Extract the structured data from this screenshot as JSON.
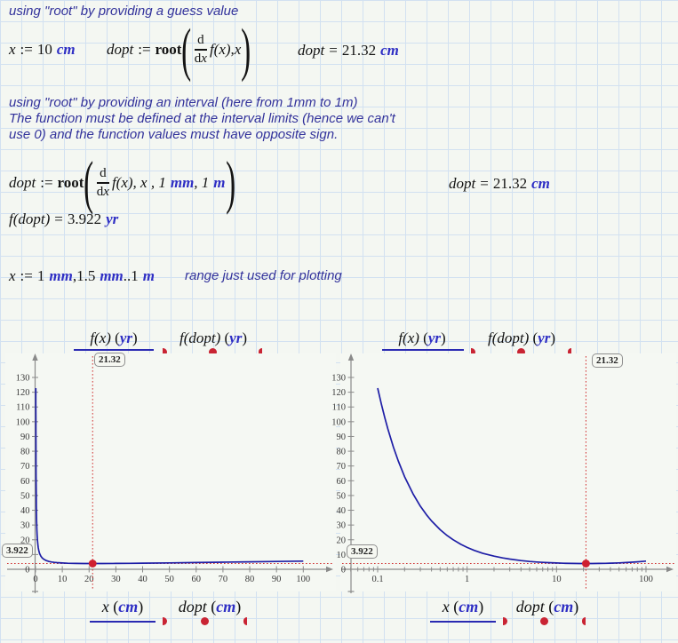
{
  "symbols": {
    "lp": "(",
    "rp": ")"
  },
  "comments": {
    "c1": "using \"root\" by providing a guess value",
    "c2_line1": "using \"root\" by providing an interval (here from 1mm to 1m)",
    "c2_line2": "The function must be defined at the interval limits (hence we can't",
    "c2_line3": "use 0) and the function values must have opposite sign.",
    "c3": "range just used for plotting"
  },
  "math": {
    "guess": {
      "var": "x",
      "op": ":=",
      "val": "10",
      "unit": "cm"
    },
    "root1": {
      "lhs": "dopt",
      "op": ":=",
      "fn": "root",
      "num": "d",
      "den_d": "d",
      "den_v": "x",
      "body": "f(x)",
      "sep": ", ",
      "arg": "x"
    },
    "res1": {
      "lhs": "dopt",
      "op": "=",
      "val": "21.32",
      "unit": "cm"
    },
    "root2": {
      "lhs": "dopt",
      "op": ":=",
      "fn": "root",
      "num": "d",
      "den_d": "d",
      "den_v": "x",
      "body": "f(x)",
      "sep1": ", x , 1",
      "unit1": "mm",
      "sep2": ", 1",
      "unit2": "m"
    },
    "res2": {
      "lhs": "dopt",
      "op": "=",
      "val": "21.32",
      "unit": "cm"
    },
    "fval": {
      "lhs": "f(dopt)",
      "op": "=",
      "val": "3.922",
      "unit": "yr"
    },
    "range": {
      "var": "x",
      "op": ":=",
      "v1": "1",
      "u1": "mm",
      "c": ",",
      "v2": "1.5",
      "u2": "mm",
      "dots": "..",
      "v3": "1",
      "u3": "m"
    }
  },
  "chart_data": [
    {
      "id": "plot-left",
      "type": "line",
      "x_scale": "linear",
      "title": "",
      "xlabel": "x (cm)",
      "ylabel": "f(x) (yr)",
      "xlim": [
        0,
        110
      ],
      "ylim": [
        0,
        138
      ],
      "x_ticks": [
        0,
        10,
        20,
        30,
        40,
        50,
        60,
        70,
        80,
        90,
        100
      ],
      "x_minor": [],
      "y_ticks": [
        0,
        10,
        20,
        30,
        40,
        50,
        60,
        70,
        80,
        90,
        100,
        110,
        120,
        130
      ],
      "legend_top": [
        {
          "name": "f(x)",
          "unit": "yr",
          "style": "line"
        },
        {
          "name": "f(dopt)",
          "unit": "yr",
          "style": "dots"
        }
      ],
      "legend_bottom": [
        {
          "name": "x",
          "unit": "cm",
          "style": "line"
        },
        {
          "name": "dopt",
          "unit": "cm",
          "style": "dots"
        }
      ],
      "marker": {
        "x": 21.32,
        "y": 3.922,
        "x_label": "21.32",
        "y_label": "3.922"
      },
      "series": [
        {
          "name": "f(x)",
          "points": [
            [
              0.1,
              122.8
            ],
            [
              0.11,
              111.9
            ],
            [
              0.12,
              102.8
            ],
            [
              0.13,
              95.1
            ],
            [
              0.15,
              82.8
            ],
            [
              0.17,
              73.4
            ],
            [
              0.2,
              62.8
            ],
            [
              0.25,
              50.8
            ],
            [
              0.3,
              42.8
            ],
            [
              0.35,
              37.1
            ],
            [
              0.4,
              32.8
            ],
            [
              0.5,
              26.8
            ],
            [
              0.6,
              22.8
            ],
            [
              0.7,
              20.0
            ],
            [
              0.85,
              16.9
            ],
            [
              1,
              14.8
            ],
            [
              1.2,
              12.8
            ],
            [
              1.5,
              10.8
            ],
            [
              2,
              8.9
            ],
            [
              2.5,
              7.7
            ],
            [
              3,
              6.9
            ],
            [
              4,
              5.9
            ],
            [
              5,
              5.3
            ],
            [
              6,
              4.95
            ],
            [
              7,
              4.7
            ],
            [
              8,
              4.5
            ],
            [
              10,
              4.26
            ],
            [
              12,
              4.11
            ],
            [
              15,
              3.99
            ],
            [
              18,
              3.94
            ],
            [
              21.32,
              3.92
            ],
            [
              25,
              3.94
            ],
            [
              30,
              3.99
            ],
            [
              35,
              4.06
            ],
            [
              40,
              4.15
            ],
            [
              50,
              4.36
            ],
            [
              60,
              4.58
            ],
            [
              70,
              4.82
            ],
            [
              80,
              5.06
            ],
            [
              90,
              5.3
            ],
            [
              100,
              5.56
            ]
          ]
        },
        {
          "name": "f(dopt)",
          "points": [
            [
              21.32,
              3.922
            ]
          ]
        }
      ]
    },
    {
      "id": "plot-right",
      "type": "line",
      "x_scale": "log",
      "title": "",
      "xlabel": "x (cm)",
      "ylabel": "f(x) (yr)",
      "xlim": [
        0.04,
        200
      ],
      "ylim": [
        0,
        138
      ],
      "x_ticks": [
        0.1,
        1,
        10,
        100
      ],
      "x_minor": [
        0.05,
        0.06,
        0.07,
        0.08,
        0.09,
        0.2,
        0.3,
        0.4,
        0.5,
        0.6,
        0.7,
        0.8,
        0.9,
        2,
        3,
        4,
        5,
        6,
        7,
        8,
        9,
        20,
        30,
        40,
        50,
        60,
        70,
        80,
        90
      ],
      "y_ticks": [
        0,
        10,
        20,
        30,
        40,
        50,
        60,
        70,
        80,
        90,
        100,
        110,
        120,
        130
      ],
      "legend_top": [
        {
          "name": "f(x)",
          "unit": "yr",
          "style": "line"
        },
        {
          "name": "f(dopt)",
          "unit": "yr",
          "style": "dots"
        }
      ],
      "legend_bottom": [
        {
          "name": "x",
          "unit": "cm",
          "style": "line"
        },
        {
          "name": "dopt",
          "unit": "cm",
          "style": "dots"
        }
      ],
      "marker": {
        "x": 21.32,
        "y": 3.922,
        "x_label": "21.32",
        "y_label": "3.922"
      },
      "series": [
        {
          "name": "f(x)",
          "points": [
            [
              0.1,
              122.8
            ],
            [
              0.11,
              111.9
            ],
            [
              0.12,
              102.8
            ],
            [
              0.13,
              95.1
            ],
            [
              0.15,
              82.8
            ],
            [
              0.17,
              73.4
            ],
            [
              0.2,
              62.8
            ],
            [
              0.25,
              50.8
            ],
            [
              0.3,
              42.8
            ],
            [
              0.35,
              37.1
            ],
            [
              0.4,
              32.8
            ],
            [
              0.5,
              26.8
            ],
            [
              0.6,
              22.8
            ],
            [
              0.7,
              20.0
            ],
            [
              0.85,
              16.9
            ],
            [
              1,
              14.8
            ],
            [
              1.2,
              12.8
            ],
            [
              1.5,
              10.8
            ],
            [
              2,
              8.9
            ],
            [
              2.5,
              7.7
            ],
            [
              3,
              6.9
            ],
            [
              4,
              5.9
            ],
            [
              5,
              5.3
            ],
            [
              6,
              4.95
            ],
            [
              7,
              4.7
            ],
            [
              8,
              4.5
            ],
            [
              10,
              4.26
            ],
            [
              12,
              4.11
            ],
            [
              15,
              3.99
            ],
            [
              18,
              3.94
            ],
            [
              21.32,
              3.92
            ],
            [
              25,
              3.94
            ],
            [
              30,
              3.99
            ],
            [
              35,
              4.06
            ],
            [
              40,
              4.15
            ],
            [
              50,
              4.36
            ],
            [
              60,
              4.58
            ],
            [
              70,
              4.82
            ],
            [
              80,
              5.06
            ],
            [
              90,
              5.3
            ],
            [
              100,
              5.56
            ]
          ]
        },
        {
          "name": "f(dopt)",
          "points": [
            [
              21.32,
              3.922
            ]
          ]
        }
      ]
    }
  ]
}
